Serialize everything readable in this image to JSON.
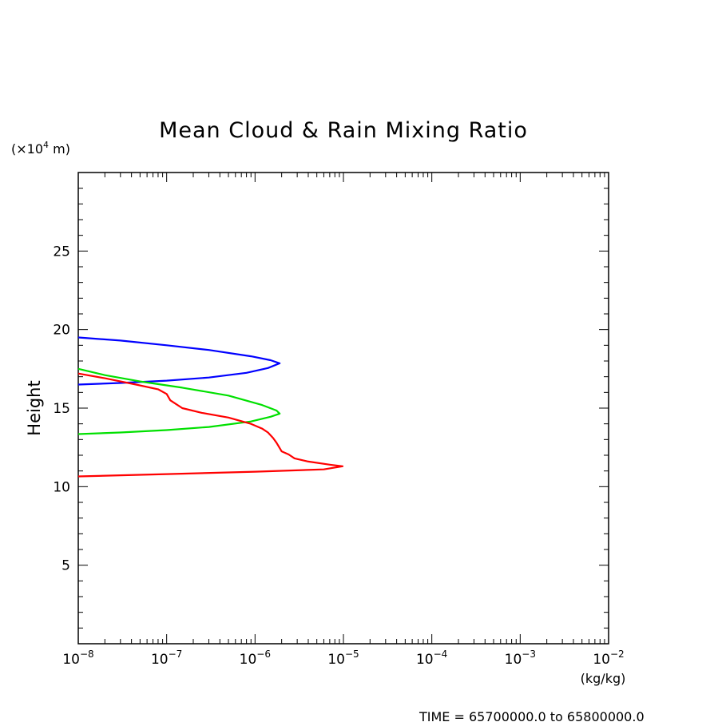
{
  "chart_data": {
    "type": "line",
    "title": "Mean Cloud & Rain Mixing Ratio",
    "ylabel": "Height",
    "ylabel_unit_prefix": "(×10",
    "ylabel_unit_exponent": "4",
    "ylabel_unit_suffix": " m)",
    "xlabel_unit": "(kg/kg)",
    "x_scale": "log",
    "xlim": [
      1e-08,
      0.01
    ],
    "ylim": [
      0,
      30
    ],
    "y_ticks": [
      5,
      10,
      15,
      20,
      25
    ],
    "y_tick_labels": [
      "5",
      "10",
      "15",
      "20",
      "25"
    ],
    "x_ticks": [
      {
        "value": 1e-08,
        "base": "10",
        "exp": "−8"
      },
      {
        "value": 1e-07,
        "base": "10",
        "exp": "−7"
      },
      {
        "value": 1e-06,
        "base": "10",
        "exp": "−6"
      },
      {
        "value": 1e-05,
        "base": "10",
        "exp": "−5"
      },
      {
        "value": 0.0001,
        "base": "10",
        "exp": "−4"
      },
      {
        "value": 0.001,
        "base": "10",
        "exp": "−3"
      },
      {
        "value": 0.01,
        "base": "10",
        "exp": "−2"
      }
    ],
    "grid": false,
    "series": [
      {
        "color": "#0000ff",
        "points": [
          [
            1e-08,
            19.5
          ],
          [
            3e-08,
            19.3
          ],
          [
            1e-07,
            19.0
          ],
          [
            3e-07,
            18.7
          ],
          [
            9e-07,
            18.3
          ],
          [
            1.5e-06,
            18.05
          ],
          [
            1.9e-06,
            17.85
          ],
          [
            1.4e-06,
            17.55
          ],
          [
            8e-07,
            17.25
          ],
          [
            3e-07,
            16.95
          ],
          [
            1e-07,
            16.75
          ],
          [
            3e-08,
            16.6
          ],
          [
            1e-08,
            16.5
          ]
        ]
      },
      {
        "color": "#00e000",
        "points": [
          [
            1e-08,
            17.5
          ],
          [
            2e-08,
            17.1
          ],
          [
            5e-08,
            16.7
          ],
          [
            1.5e-07,
            16.3
          ],
          [
            5e-07,
            15.8
          ],
          [
            1.2e-06,
            15.2
          ],
          [
            1.75e-06,
            14.85
          ],
          [
            1.9e-06,
            14.65
          ],
          [
            1.5e-06,
            14.45
          ],
          [
            9e-07,
            14.15
          ],
          [
            3e-07,
            13.8
          ],
          [
            1e-07,
            13.6
          ],
          [
            3e-08,
            13.45
          ],
          [
            1e-08,
            13.35
          ]
        ]
      },
      {
        "color": "#ff0000",
        "points": [
          [
            1e-08,
            17.2
          ],
          [
            2e-08,
            16.9
          ],
          [
            4.5e-08,
            16.5
          ],
          [
            8e-08,
            16.2
          ],
          [
            1e-07,
            15.9
          ],
          [
            1.1e-07,
            15.5
          ],
          [
            1.5e-07,
            15.0
          ],
          [
            2.5e-07,
            14.7
          ],
          [
            5e-07,
            14.4
          ],
          [
            9e-07,
            14.0
          ],
          [
            1.2e-06,
            13.7
          ],
          [
            1.4e-06,
            13.45
          ],
          [
            1.6e-06,
            13.1
          ],
          [
            1.75e-06,
            12.8
          ],
          [
            2e-06,
            12.25
          ],
          [
            2.4e-06,
            12.05
          ],
          [
            2.8e-06,
            11.8
          ],
          [
            4e-06,
            11.6
          ],
          [
            7e-06,
            11.4
          ],
          [
            9.8e-06,
            11.3
          ],
          [
            6e-06,
            11.1
          ],
          [
            1e-06,
            10.95
          ],
          [
            1e-07,
            10.8
          ],
          [
            1e-08,
            10.65
          ]
        ]
      }
    ]
  },
  "footer": {
    "time_label": "TIME = 65700000.0 to 65800000.0"
  }
}
